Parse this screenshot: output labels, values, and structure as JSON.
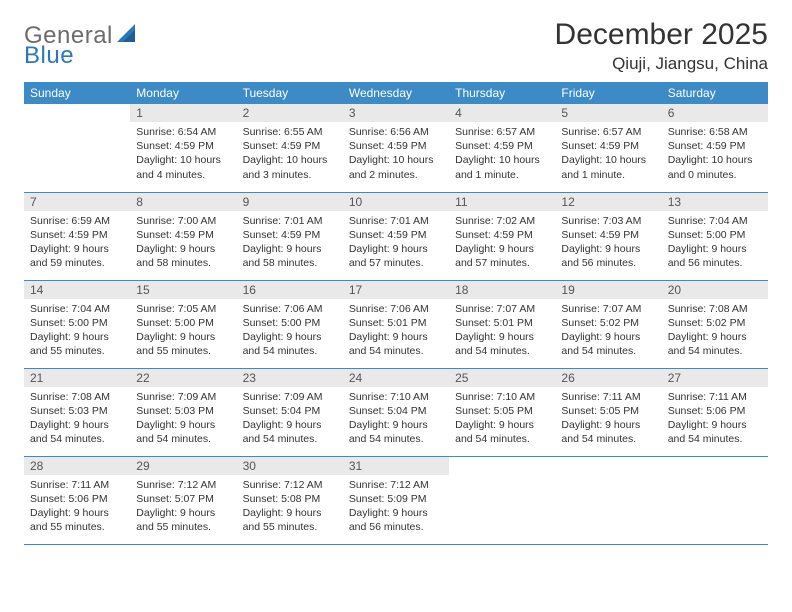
{
  "brand": {
    "part1": "General",
    "part2": "Blue"
  },
  "title": "December 2025",
  "location": "Qiuji, Jiangsu, China",
  "colors": {
    "header_bg": "#3c8ac6",
    "header_text": "#ffffff",
    "daynum_bg": "#e9e9e9",
    "row_border": "#3c8ac6",
    "body_text": "#333333",
    "logo_gray": "#6c6c6c",
    "logo_blue": "#2b77bd",
    "page_bg": "#ffffff"
  },
  "weekdays": [
    "Sunday",
    "Monday",
    "Tuesday",
    "Wednesday",
    "Thursday",
    "Friday",
    "Saturday"
  ],
  "weeks": [
    [
      null,
      {
        "n": "1",
        "sr": "6:54 AM",
        "ss": "4:59 PM",
        "dl": "10 hours and 4 minutes."
      },
      {
        "n": "2",
        "sr": "6:55 AM",
        "ss": "4:59 PM",
        "dl": "10 hours and 3 minutes."
      },
      {
        "n": "3",
        "sr": "6:56 AM",
        "ss": "4:59 PM",
        "dl": "10 hours and 2 minutes."
      },
      {
        "n": "4",
        "sr": "6:57 AM",
        "ss": "4:59 PM",
        "dl": "10 hours and 1 minute."
      },
      {
        "n": "5",
        "sr": "6:57 AM",
        "ss": "4:59 PM",
        "dl": "10 hours and 1 minute."
      },
      {
        "n": "6",
        "sr": "6:58 AM",
        "ss": "4:59 PM",
        "dl": "10 hours and 0 minutes."
      }
    ],
    [
      {
        "n": "7",
        "sr": "6:59 AM",
        "ss": "4:59 PM",
        "dl": "9 hours and 59 minutes."
      },
      {
        "n": "8",
        "sr": "7:00 AM",
        "ss": "4:59 PM",
        "dl": "9 hours and 58 minutes."
      },
      {
        "n": "9",
        "sr": "7:01 AM",
        "ss": "4:59 PM",
        "dl": "9 hours and 58 minutes."
      },
      {
        "n": "10",
        "sr": "7:01 AM",
        "ss": "4:59 PM",
        "dl": "9 hours and 57 minutes."
      },
      {
        "n": "11",
        "sr": "7:02 AM",
        "ss": "4:59 PM",
        "dl": "9 hours and 57 minutes."
      },
      {
        "n": "12",
        "sr": "7:03 AM",
        "ss": "4:59 PM",
        "dl": "9 hours and 56 minutes."
      },
      {
        "n": "13",
        "sr": "7:04 AM",
        "ss": "5:00 PM",
        "dl": "9 hours and 56 minutes."
      }
    ],
    [
      {
        "n": "14",
        "sr": "7:04 AM",
        "ss": "5:00 PM",
        "dl": "9 hours and 55 minutes."
      },
      {
        "n": "15",
        "sr": "7:05 AM",
        "ss": "5:00 PM",
        "dl": "9 hours and 55 minutes."
      },
      {
        "n": "16",
        "sr": "7:06 AM",
        "ss": "5:00 PM",
        "dl": "9 hours and 54 minutes."
      },
      {
        "n": "17",
        "sr": "7:06 AM",
        "ss": "5:01 PM",
        "dl": "9 hours and 54 minutes."
      },
      {
        "n": "18",
        "sr": "7:07 AM",
        "ss": "5:01 PM",
        "dl": "9 hours and 54 minutes."
      },
      {
        "n": "19",
        "sr": "7:07 AM",
        "ss": "5:02 PM",
        "dl": "9 hours and 54 minutes."
      },
      {
        "n": "20",
        "sr": "7:08 AM",
        "ss": "5:02 PM",
        "dl": "9 hours and 54 minutes."
      }
    ],
    [
      {
        "n": "21",
        "sr": "7:08 AM",
        "ss": "5:03 PM",
        "dl": "9 hours and 54 minutes."
      },
      {
        "n": "22",
        "sr": "7:09 AM",
        "ss": "5:03 PM",
        "dl": "9 hours and 54 minutes."
      },
      {
        "n": "23",
        "sr": "7:09 AM",
        "ss": "5:04 PM",
        "dl": "9 hours and 54 minutes."
      },
      {
        "n": "24",
        "sr": "7:10 AM",
        "ss": "5:04 PM",
        "dl": "9 hours and 54 minutes."
      },
      {
        "n": "25",
        "sr": "7:10 AM",
        "ss": "5:05 PM",
        "dl": "9 hours and 54 minutes."
      },
      {
        "n": "26",
        "sr": "7:11 AM",
        "ss": "5:05 PM",
        "dl": "9 hours and 54 minutes."
      },
      {
        "n": "27",
        "sr": "7:11 AM",
        "ss": "5:06 PM",
        "dl": "9 hours and 54 minutes."
      }
    ],
    [
      {
        "n": "28",
        "sr": "7:11 AM",
        "ss": "5:06 PM",
        "dl": "9 hours and 55 minutes."
      },
      {
        "n": "29",
        "sr": "7:12 AM",
        "ss": "5:07 PM",
        "dl": "9 hours and 55 minutes."
      },
      {
        "n": "30",
        "sr": "7:12 AM",
        "ss": "5:08 PM",
        "dl": "9 hours and 55 minutes."
      },
      {
        "n": "31",
        "sr": "7:12 AM",
        "ss": "5:09 PM",
        "dl": "9 hours and 56 minutes."
      },
      null,
      null,
      null
    ]
  ],
  "labels": {
    "sunrise": "Sunrise:",
    "sunset": "Sunset:",
    "daylight": "Daylight:"
  }
}
